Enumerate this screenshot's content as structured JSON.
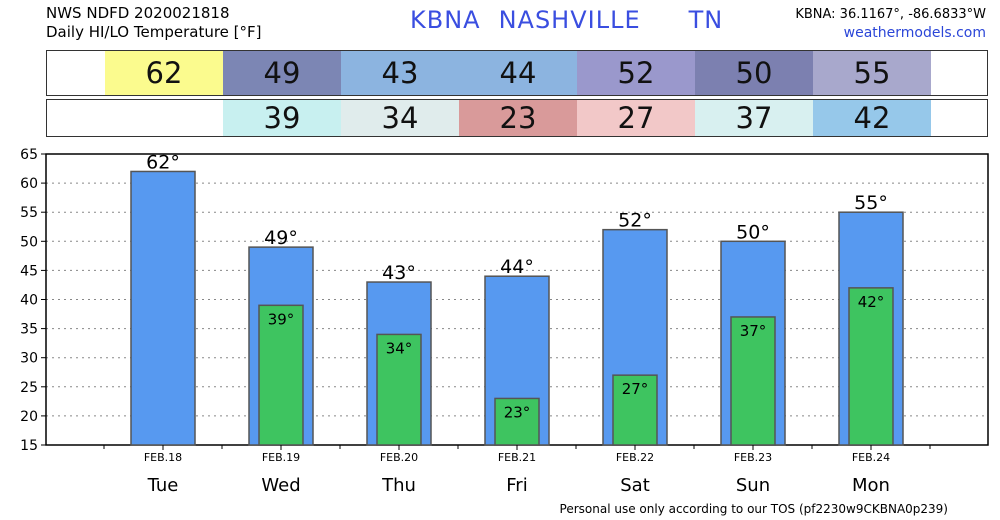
{
  "header": {
    "line1": "NWS NDFD 2020021818",
    "line2": "Daily HI/LO Temperature [°F]",
    "station": "KBNA",
    "city": "NASHVILLE",
    "state": "TN",
    "coords": "KBNA: 36.1167°, -86.6833°W",
    "site": "weathermodels.com"
  },
  "strips": {
    "highs": [
      {
        "value": "62",
        "color": "#fbfb8e"
      },
      {
        "value": "49",
        "color": "#7c86b4"
      },
      {
        "value": "43",
        "color": "#8cb4e0"
      },
      {
        "value": "44",
        "color": "#8cb4e0"
      },
      {
        "value": "52",
        "color": "#9a98cc"
      },
      {
        "value": "50",
        "color": "#7c80b0"
      },
      {
        "value": "55",
        "color": "#a8a8cc"
      }
    ],
    "lows": [
      {
        "value": "39",
        "color": "#c8f0f0"
      },
      {
        "value": "34",
        "color": "#e0ecec"
      },
      {
        "value": "23",
        "color": "#d99a9a"
      },
      {
        "value": "27",
        "color": "#f2c8c8"
      },
      {
        "value": "37",
        "color": "#d8f0f0"
      },
      {
        "value": "42",
        "color": "#96c8ea"
      }
    ]
  },
  "chart_data": {
    "type": "bar",
    "categories": [
      "Tue",
      "Wed",
      "Thu",
      "Fri",
      "Sat",
      "Sun",
      "Mon"
    ],
    "dates": [
      "FEB.18",
      "FEB.19",
      "FEB.20",
      "FEB.21",
      "FEB.22",
      "FEB.23",
      "FEB.24"
    ],
    "series": [
      {
        "values": [
          62,
          49,
          43,
          44,
          52,
          50,
          55
        ],
        "color": "#5799f0"
      },
      {
        "values": [
          null,
          39,
          34,
          23,
          27,
          37,
          42
        ],
        "color": "#3ec460"
      }
    ],
    "ylim": [
      15,
      65
    ],
    "yticks": [
      15,
      20,
      25,
      30,
      35,
      40,
      45,
      50,
      55,
      60,
      65
    ],
    "grid": true,
    "degree": "°"
  },
  "footer": "Personal use only according to our TOS (pf2230w9CKBNA0p239)"
}
